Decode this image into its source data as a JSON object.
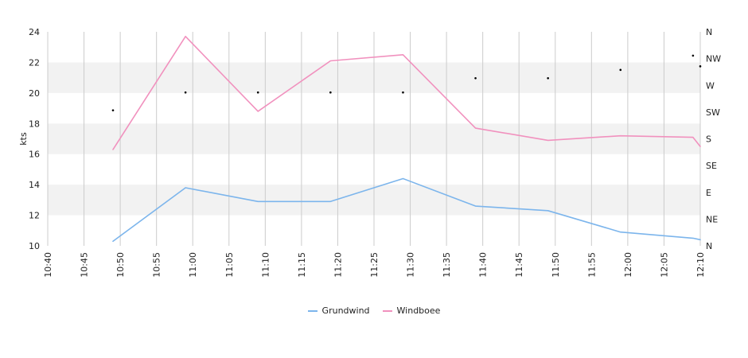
{
  "chart_data": {
    "type": "line",
    "y_axis_label": "kts",
    "y_ticks": [
      10,
      12,
      14,
      16,
      18,
      20,
      22,
      24
    ],
    "ylim": [
      10,
      24
    ],
    "x_ticks": [
      "10:40",
      "10:45",
      "10:50",
      "10:55",
      "11:00",
      "11:05",
      "11:10",
      "11:15",
      "11:20",
      "11:25",
      "11:30",
      "11:35",
      "11:40",
      "11:45",
      "11:50",
      "11:55",
      "12:00",
      "12:05",
      "12:10"
    ],
    "x_tick_minutes": [
      640,
      645,
      650,
      655,
      660,
      665,
      670,
      675,
      680,
      685,
      690,
      695,
      700,
      705,
      710,
      715,
      720,
      725,
      730
    ],
    "xlim_minutes": [
      640,
      730
    ],
    "direction_axis_labels": [
      "N",
      "NE",
      "E",
      "SE",
      "S",
      "SW",
      "W",
      "NW",
      "N"
    ],
    "direction_axis_range_deg": [
      0,
      360
    ],
    "grid": true,
    "legend_position": "bottom",
    "series": [
      {
        "name": "Grundwind",
        "color": "#7cb5ec",
        "points": [
          {
            "x": "10:49",
            "y": 10.3
          },
          {
            "x": "10:59",
            "y": 13.8
          },
          {
            "x": "11:09",
            "y": 12.9
          },
          {
            "x": "11:19",
            "y": 12.9
          },
          {
            "x": "11:29",
            "y": 14.4
          },
          {
            "x": "11:39",
            "y": 12.6
          },
          {
            "x": "11:49",
            "y": 12.3
          },
          {
            "x": "11:59",
            "y": 10.9
          },
          {
            "x": "12:09",
            "y": 10.5
          },
          {
            "x": "12:10",
            "y": 10.4
          }
        ]
      },
      {
        "name": "Windboee",
        "color": "#f191be",
        "points": [
          {
            "x": "10:49",
            "y": 16.3
          },
          {
            "x": "10:59",
            "y": 23.7
          },
          {
            "x": "11:09",
            "y": 18.8
          },
          {
            "x": "11:19",
            "y": 22.1
          },
          {
            "x": "11:29",
            "y": 22.5
          },
          {
            "x": "11:39",
            "y": 17.7
          },
          {
            "x": "11:49",
            "y": 16.9
          },
          {
            "x": "11:59",
            "y": 17.2
          },
          {
            "x": "12:09",
            "y": 17.1
          },
          {
            "x": "12:10",
            "y": 16.5
          }
        ]
      }
    ],
    "direction_markers_deg": [
      {
        "x": "10:49",
        "deg": 228
      },
      {
        "x": "10:59",
        "deg": 258
      },
      {
        "x": "11:09",
        "deg": 258
      },
      {
        "x": "11:19",
        "deg": 258
      },
      {
        "x": "11:29",
        "deg": 258
      },
      {
        "x": "11:39",
        "deg": 282
      },
      {
        "x": "11:49",
        "deg": 282
      },
      {
        "x": "11:59",
        "deg": 296
      },
      {
        "x": "12:09",
        "deg": 320
      },
      {
        "x": "12:10",
        "deg": 302
      }
    ]
  }
}
